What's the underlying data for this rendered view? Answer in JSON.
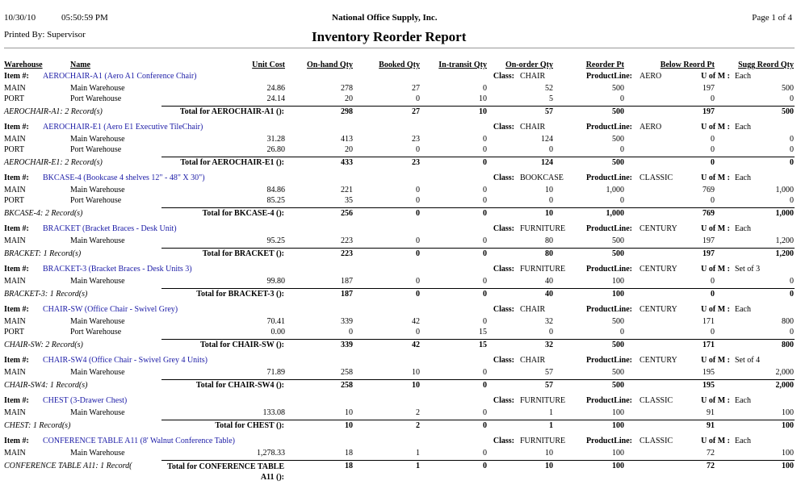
{
  "header": {
    "date": "10/30/10",
    "time": "05:50:59 PM",
    "company": "National Office Supply, Inc.",
    "page": "Page 1 of 4",
    "printed_by": "Printed By: Supervisor",
    "title": "Inventory Reorder Report"
  },
  "columns": [
    "Warehouse",
    "Name",
    "Unit Cost",
    "On-hand Qty",
    "Booked Qty",
    "In-transit Qty",
    "On-order Qty",
    "Reorder Pt",
    "Below Reord Pt",
    "Sugg Reord Qty"
  ],
  "labels": {
    "item": "Item #:",
    "class": "Class:",
    "product_line": "ProductLine:",
    "uom": "U of M :"
  },
  "items": [
    {
      "description": "AEROCHAIR-A1 (Aero A1 Conference Chair)",
      "class": "CHAIR",
      "product_line": "AERO",
      "uom": "Each",
      "rows": [
        [
          "MAIN",
          "Main Warehouse",
          "24.86",
          "278",
          "27",
          "0",
          "52",
          "500",
          "197",
          "500"
        ],
        [
          "PORT",
          "Port Warehouse",
          "24.14",
          "20",
          "0",
          "10",
          "5",
          "0",
          "0",
          "0"
        ]
      ],
      "count": "AEROCHAIR-A1: 2 Record(s)",
      "total_label": "Total for AEROCHAIR-A1 ():",
      "totals": [
        "298",
        "27",
        "10",
        "57",
        "500",
        "197",
        "500"
      ]
    },
    {
      "description": "AEROCHAIR-E1 (Aero E1 Executive TileChair)",
      "class": "CHAIR",
      "product_line": "AERO",
      "uom": "Each",
      "rows": [
        [
          "MAIN",
          "Main Warehouse",
          "31.28",
          "413",
          "23",
          "0",
          "124",
          "500",
          "0",
          "0"
        ],
        [
          "PORT",
          "Port Warehouse",
          "26.80",
          "20",
          "0",
          "0",
          "0",
          "0",
          "0",
          "0"
        ]
      ],
      "count": "AEROCHAIR-E1: 2 Record(s)",
      "total_label": "Total for AEROCHAIR-E1 ():",
      "totals": [
        "433",
        "23",
        "0",
        "124",
        "500",
        "0",
        "0"
      ]
    },
    {
      "description": "BKCASE-4 (Bookcase 4 shelves 12\" - 48\" X 30\")",
      "class": "BOOKCASE",
      "product_line": "CLASSIC",
      "uom": "Each",
      "rows": [
        [
          "MAIN",
          "Main Warehouse",
          "84.86",
          "221",
          "0",
          "0",
          "10",
          "1,000",
          "769",
          "1,000"
        ],
        [
          "PORT",
          "Port Warehouse",
          "85.25",
          "35",
          "0",
          "0",
          "0",
          "0",
          "0",
          "0"
        ]
      ],
      "count": "BKCASE-4: 2 Record(s)",
      "total_label": "Total for BKCASE-4 ():",
      "totals": [
        "256",
        "0",
        "0",
        "10",
        "1,000",
        "769",
        "1,000"
      ]
    },
    {
      "description": "BRACKET (Bracket Braces - Desk Unit)",
      "class": "FURNITURE",
      "product_line": "CENTURY",
      "uom": "Each",
      "rows": [
        [
          "MAIN",
          "Main Warehouse",
          "95.25",
          "223",
          "0",
          "0",
          "80",
          "500",
          "197",
          "1,200"
        ]
      ],
      "count": "BRACKET: 1 Record(s)",
      "total_label": "Total for BRACKET ():",
      "totals": [
        "223",
        "0",
        "0",
        "80",
        "500",
        "197",
        "1,200"
      ]
    },
    {
      "description": "BRACKET-3 (Bracket Braces - Desk Units 3)",
      "class": "FURNITURE",
      "product_line": "CENTURY",
      "uom": "Set of 3",
      "rows": [
        [
          "MAIN",
          "Main Warehouse",
          "99.80",
          "187",
          "0",
          "0",
          "40",
          "100",
          "0",
          "0"
        ]
      ],
      "count": "BRACKET-3: 1 Record(s)",
      "total_label": "Total for BRACKET-3 ():",
      "totals": [
        "187",
        "0",
        "0",
        "40",
        "100",
        "0",
        "0"
      ]
    },
    {
      "description": "CHAIR-SW (Office Chair - Swivel Grey)",
      "class": "CHAIR",
      "product_line": "CENTURY",
      "uom": "Each",
      "rows": [
        [
          "MAIN",
          "Main Warehouse",
          "70.41",
          "339",
          "42",
          "0",
          "32",
          "500",
          "171",
          "800"
        ],
        [
          "PORT",
          "Port Warehouse",
          "0.00",
          "0",
          "0",
          "15",
          "0",
          "0",
          "0",
          "0"
        ]
      ],
      "count": "CHAIR-SW: 2 Record(s)",
      "total_label": "Total for CHAIR-SW ():",
      "totals": [
        "339",
        "42",
        "15",
        "32",
        "500",
        "171",
        "800"
      ]
    },
    {
      "description": "CHAIR-SW4 (Office Chair - Swivel Grey 4 Units)",
      "class": "CHAIR",
      "product_line": "CENTURY",
      "uom": "Set of 4",
      "rows": [
        [
          "MAIN",
          "Main Warehouse",
          "71.89",
          "258",
          "10",
          "0",
          "57",
          "500",
          "195",
          "2,000"
        ]
      ],
      "count": "CHAIR-SW4: 1 Record(s)",
      "total_label": "Total for CHAIR-SW4 ():",
      "totals": [
        "258",
        "10",
        "0",
        "57",
        "500",
        "195",
        "2,000"
      ]
    },
    {
      "description": "CHEST (3-Drawer Chest)",
      "class": "FURNITURE",
      "product_line": "CLASSIC",
      "uom": "Each",
      "rows": [
        [
          "MAIN",
          "Main Warehouse",
          "133.08",
          "10",
          "2",
          "0",
          "1",
          "100",
          "91",
          "100"
        ]
      ],
      "count": "CHEST: 1 Record(s)",
      "total_label": "Total for CHEST ():",
      "totals": [
        "10",
        "2",
        "0",
        "1",
        "100",
        "91",
        "100"
      ]
    },
    {
      "description": "CONFERENCE TABLE A11 (8' Walnut Conference Table)",
      "class": "FURNITURE",
      "product_line": "CLASSIC",
      "uom": "Each",
      "rows": [
        [
          "MAIN",
          "Main Warehouse",
          "1,278.33",
          "18",
          "1",
          "0",
          "10",
          "100",
          "72",
          "100"
        ]
      ],
      "count": "CONFERENCE TABLE A11: 1 Record(",
      "total_label": "Total for CONFERENCE TABLE A11 ():",
      "totals": [
        "18",
        "1",
        "0",
        "10",
        "100",
        "72",
        "100"
      ]
    }
  ]
}
